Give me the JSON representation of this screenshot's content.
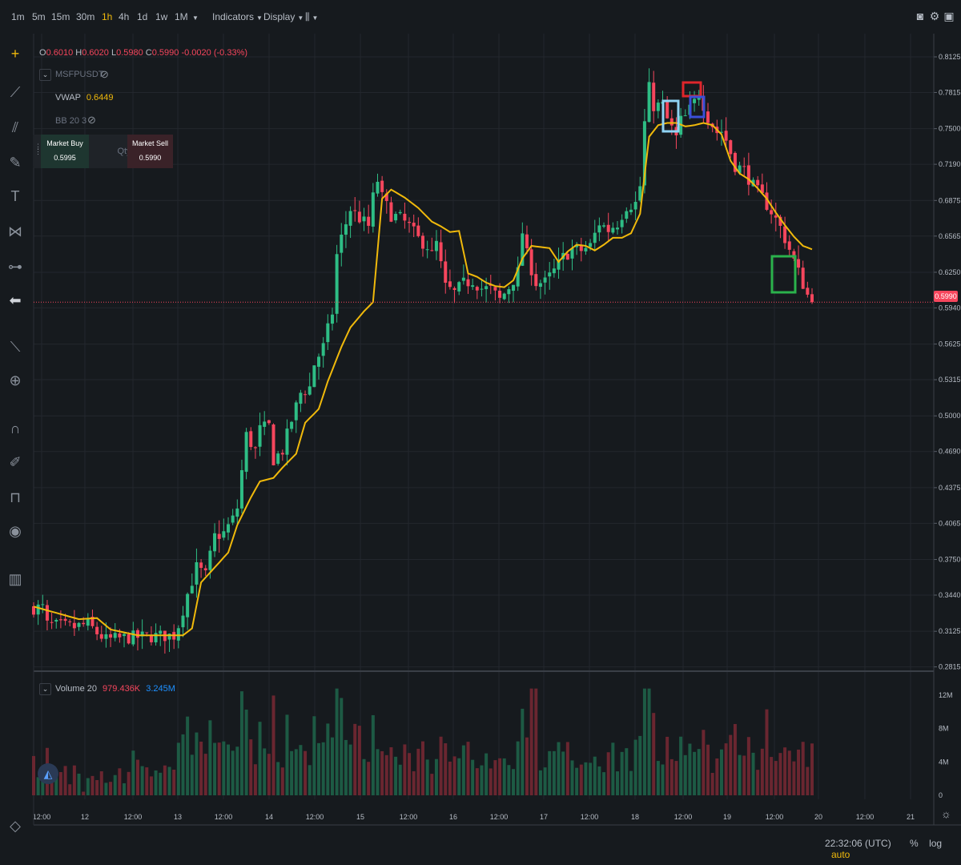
{
  "toolbar": {
    "timeframes": [
      "1m",
      "5m",
      "15m",
      "30m",
      "1h",
      "4h",
      "1d",
      "1w",
      "1M"
    ],
    "active_timeframe": "1h",
    "indicators_label": "Indicators",
    "display_label": "Display"
  },
  "legend": {
    "open_label": "O",
    "open": "0.6010",
    "high_label": "H",
    "high": "0.6020",
    "low_label": "L",
    "low": "0.5980",
    "close_label": "C",
    "close": "0.5990",
    "change": "-0.0020 (-0.33%)",
    "symbol": "MSFPUSDT",
    "vwap_label": "VWAP",
    "vwap_value": "0.6449",
    "bb_label": "BB 20 3",
    "volume_label": "Volume 20",
    "volume_value1": "979.436K",
    "volume_value2": "3.245M"
  },
  "order_box": {
    "buy_label": "Market Buy",
    "buy_price": "0.5995",
    "qty_label": "Qty",
    "sell_label": "Market Sell",
    "sell_price": "0.5990"
  },
  "status": {
    "time": "22:32:06 (UTC)",
    "percent": "%",
    "log": "log",
    "auto": "auto"
  },
  "colors": {
    "up": "#2ebd85",
    "down": "#f6465d",
    "vwap": "#f0b90b",
    "bg": "#161a1e",
    "grid": "#23272d"
  },
  "chart_data": {
    "type": "candlestick",
    "y_ticks": [
      "0.8125",
      "0.7815",
      "0.7500",
      "0.7190",
      "0.6875",
      "0.6565",
      "0.6250",
      "0.5940",
      "0.5625",
      "0.5315",
      "0.5000",
      "0.4690",
      "0.4375",
      "0.4065",
      "0.3750",
      "0.3440",
      "0.3125",
      "0.2815"
    ],
    "ylim": [
      0.27,
      0.83
    ],
    "last_price": "0.5990",
    "x_ticks": [
      "12:00",
      "12",
      "12:00",
      "13",
      "12:00",
      "14",
      "12:00",
      "15",
      "12:00",
      "16",
      "12:00",
      "17",
      "12:00",
      "18",
      "12:00",
      "19",
      "12:00",
      "20",
      "12:00",
      "21"
    ],
    "vwap_keypoints": [
      [
        0,
        0.334
      ],
      [
        10,
        0.323
      ],
      [
        14,
        0.324
      ],
      [
        17,
        0.314
      ],
      [
        23,
        0.309
      ],
      [
        33,
        0.309
      ],
      [
        35,
        0.315
      ],
      [
        37,
        0.355
      ],
      [
        40,
        0.368
      ],
      [
        43,
        0.381
      ],
      [
        45,
        0.405
      ],
      [
        48,
        0.429
      ],
      [
        50,
        0.443
      ],
      [
        53,
        0.446
      ],
      [
        55,
        0.455
      ],
      [
        58,
        0.467
      ],
      [
        60,
        0.494
      ],
      [
        63,
        0.506
      ],
      [
        65,
        0.53
      ],
      [
        68,
        0.56
      ],
      [
        70,
        0.577
      ],
      [
        73,
        0.591
      ],
      [
        75,
        0.599
      ],
      [
        77,
        0.689
      ],
      [
        79,
        0.697
      ],
      [
        82,
        0.69
      ],
      [
        85,
        0.681
      ],
      [
        88,
        0.669
      ],
      [
        90,
        0.665
      ],
      [
        92,
        0.66
      ],
      [
        94,
        0.661
      ],
      [
        96,
        0.624
      ],
      [
        98,
        0.621
      ],
      [
        100,
        0.616
      ],
      [
        102,
        0.613
      ],
      [
        104,
        0.612
      ],
      [
        106,
        0.618
      ],
      [
        108,
        0.637
      ],
      [
        110,
        0.648
      ],
      [
        112,
        0.647
      ],
      [
        114,
        0.646
      ],
      [
        116,
        0.634
      ],
      [
        118,
        0.643
      ],
      [
        120,
        0.649
      ],
      [
        122,
        0.648
      ],
      [
        124,
        0.644
      ],
      [
        126,
        0.649
      ],
      [
        128,
        0.655
      ],
      [
        130,
        0.655
      ],
      [
        132,
        0.659
      ],
      [
        134,
        0.676
      ],
      [
        136,
        0.743
      ],
      [
        138,
        0.753
      ],
      [
        140,
        0.755
      ],
      [
        142,
        0.755
      ],
      [
        144,
        0.752
      ],
      [
        146,
        0.753
      ],
      [
        148,
        0.755
      ],
      [
        150,
        0.753
      ],
      [
        152,
        0.745
      ],
      [
        154,
        0.722
      ],
      [
        156,
        0.711
      ],
      [
        158,
        0.706
      ],
      [
        160,
        0.698
      ],
      [
        162,
        0.689
      ],
      [
        164,
        0.677
      ],
      [
        166,
        0.666
      ],
      [
        168,
        0.656
      ],
      [
        170,
        0.648
      ],
      [
        172,
        0.645
      ]
    ],
    "volume_ticks": [
      "12M",
      "8M",
      "4M",
      "0"
    ],
    "volume_ylim": [
      0,
      14000000
    ]
  }
}
